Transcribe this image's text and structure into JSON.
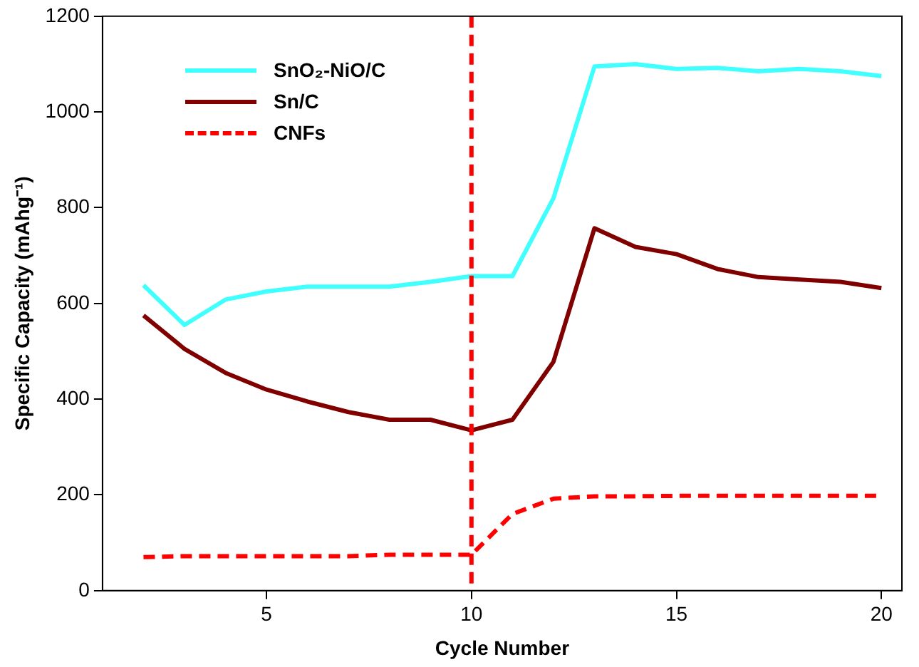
{
  "chart_data": {
    "type": "line",
    "xlabel": "Cycle Number",
    "ylabel": "Specific Capacity (mAhg⁻¹)",
    "x": [
      2,
      3,
      4,
      5,
      6,
      7,
      8,
      9,
      10,
      11,
      12,
      13,
      14,
      15,
      16,
      17,
      18,
      19,
      20
    ],
    "series": [
      {
        "name": "SnO₂-NiO/C",
        "color": "#40ffff",
        "values": [
          638,
          555,
          608,
          625,
          635,
          635,
          635,
          645,
          657,
          657,
          820,
          1095,
          1100,
          1090,
          1092,
          1085,
          1090,
          1085,
          1075
        ]
      },
      {
        "name": "Sn/C",
        "color": "#800000",
        "values": [
          575,
          505,
          455,
          420,
          395,
          373,
          357,
          357,
          335,
          357,
          478,
          757,
          718,
          703,
          672,
          655,
          650,
          645,
          632
        ]
      },
      {
        "name": "CNFs",
        "color": "#ff0000",
        "line_style": "dashed",
        "values": [
          70,
          72,
          72,
          72,
          72,
          72,
          75,
          75,
          75,
          160,
          192,
          197,
          197,
          198,
          198,
          198,
          198,
          198,
          198
        ]
      }
    ],
    "xlim": [
      1,
      20.5
    ],
    "xticks": [
      5,
      10,
      15,
      20
    ],
    "ylim": [
      0,
      1200
    ],
    "yticks": [
      0,
      200,
      400,
      600,
      800,
      1000,
      1200
    ],
    "ref_lines": [
      {
        "axis": "x",
        "value": 10,
        "color": "#ff0000",
        "line_style": "dashed"
      }
    ],
    "grid": false,
    "legend": "top left",
    "marker": "none"
  }
}
